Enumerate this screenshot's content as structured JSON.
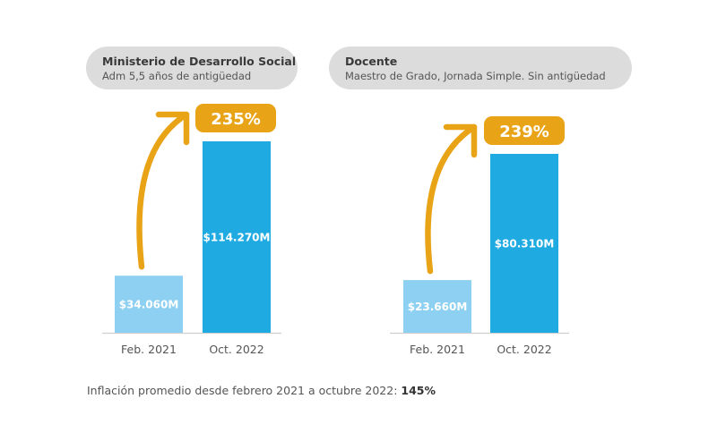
{
  "panels": [
    {
      "title": "Ministerio de Desarrollo Social",
      "subtitle": "Adm 5,5 años de antigüedad"
    },
    {
      "title": "Docente",
      "subtitle": "Maestro de Grado, Jornada Simple. Sin antigüedad"
    }
  ],
  "footer": {
    "text": "Inflación promedio desde febrero 2021 a octubre 2022: ",
    "value": "145%"
  },
  "colors": {
    "bar_before": "#8dd0f1",
    "bar_after": "#1faae2",
    "accent": "#e8a317",
    "pill_bg": "#dcdcdc",
    "axis": "#cfcfcf"
  },
  "chart_data": [
    {
      "type": "bar",
      "title": "Ministerio de Desarrollo Social",
      "subtitle": "Adm 5,5 años de antigüedad",
      "categories": [
        "Feb. 2021",
        "Oct. 2022"
      ],
      "values": [
        34060,
        114270
      ],
      "value_labels": [
        "$34.060M",
        "$114.270M"
      ],
      "increase_label": "235%",
      "xlabel": "",
      "ylabel": "",
      "grid": false
    },
    {
      "type": "bar",
      "title": "Docente",
      "subtitle": "Maestro de Grado, Jornada Simple. Sin antigüedad",
      "categories": [
        "Feb. 2021",
        "Oct. 2022"
      ],
      "values": [
        23660,
        80310
      ],
      "value_labels": [
        "$23.660M",
        "$80.310M"
      ],
      "increase_label": "239%",
      "xlabel": "",
      "ylabel": "",
      "grid": false
    }
  ]
}
